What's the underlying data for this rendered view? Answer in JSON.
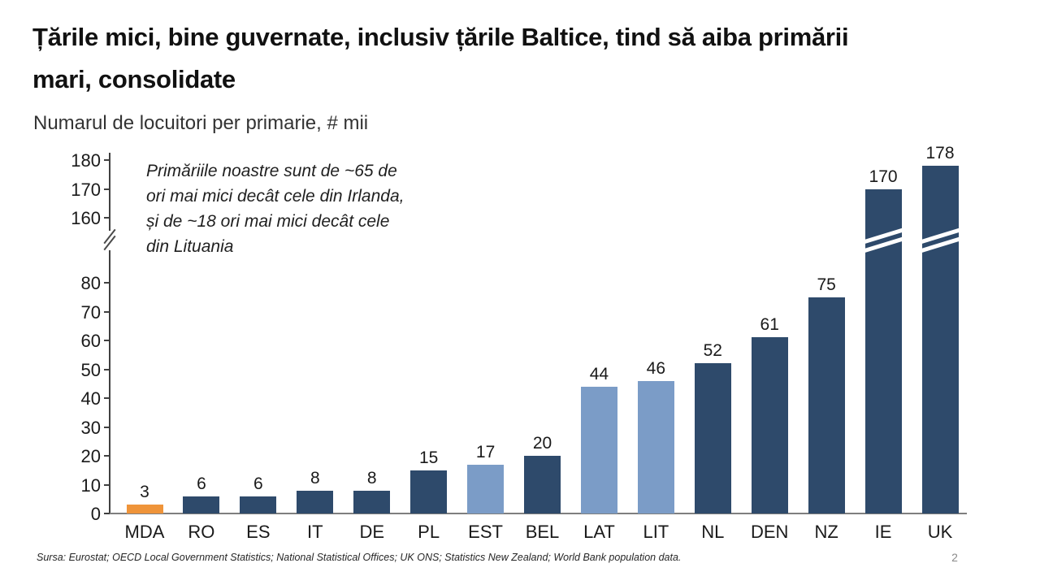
{
  "slide": {
    "title": "Țările mici, bine guvernate, inclusiv țările Baltice, tind să aiba primării\nmari, consolidate",
    "subtitle": "Numarul de locuitori per primarie, # mii",
    "annotation": "Primăriile noastre sunt de ~65 de\nori mai mici decât cele din Irlanda,\nși de ~18 ori mai mici decât cele\ndin Lituania",
    "source": "Sursa: Eurostat; OECD Local Government Statistics; National Statistical Offices; UK ONS; Statistics New Zealand; World Bank population data.",
    "page_number": "2"
  },
  "chart_data": {
    "type": "bar",
    "title": "Numarul de locuitori per primarie, # mii",
    "categories": [
      "MDA",
      "RO",
      "ES",
      "IT",
      "DE",
      "PL",
      "EST",
      "BEL",
      "LAT",
      "LIT",
      "NL",
      "DEN",
      "NZ",
      "IE",
      "UK"
    ],
    "values": [
      3,
      6,
      6,
      8,
      8,
      15,
      17,
      20,
      44,
      46,
      52,
      61,
      75,
      170,
      178
    ],
    "bar_styles": [
      "orange",
      "dark",
      "dark",
      "dark",
      "dark",
      "dark",
      "light",
      "dark",
      "light",
      "light",
      "dark",
      "dark",
      "dark",
      "dark",
      "dark"
    ],
    "colors": {
      "dark": "#2E4A6B",
      "light": "#7B9CC7",
      "orange": "#EF943A",
      "baseline": "#7F7F7F",
      "axis": "#404040"
    },
    "y_axis": {
      "lower_ticks": [
        0,
        10,
        20,
        30,
        40,
        50,
        60,
        70,
        80
      ],
      "upper_ticks": [
        160,
        170,
        180
      ],
      "axis_break": true,
      "break_between": [
        80,
        160
      ]
    },
    "broken_bars": [
      "IE",
      "UK"
    ],
    "grid": false,
    "legend": false,
    "xlabel": "",
    "ylabel": ""
  }
}
